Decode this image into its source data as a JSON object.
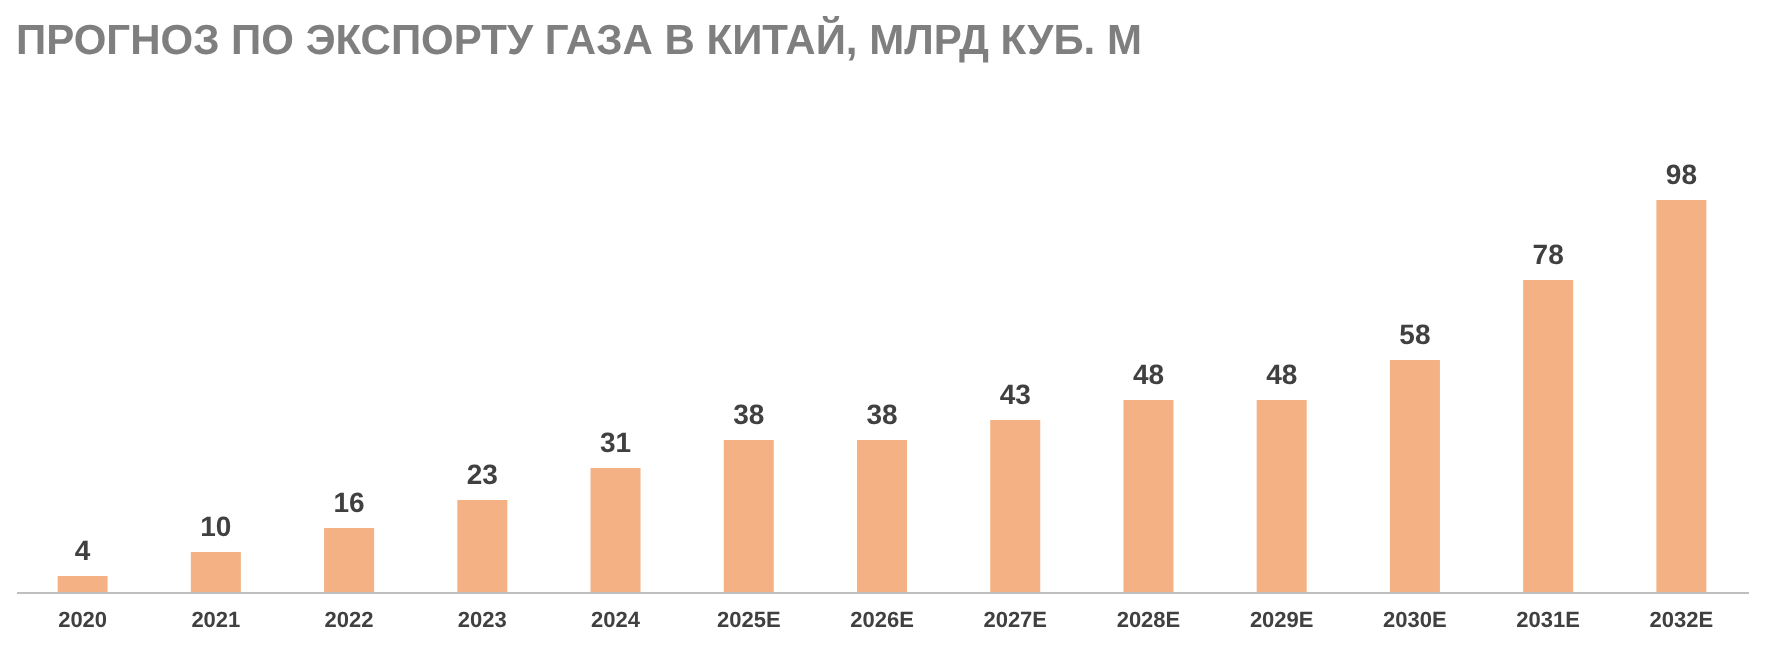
{
  "chart_data": {
    "type": "bar",
    "title": "ПРОГНОЗ ПО ЭКСПОРТУ ГАЗА В КИТАЙ, МЛРД КУБ. М",
    "categories": [
      "2020",
      "2021",
      "2022",
      "2023",
      "2024",
      "2025E",
      "2026E",
      "2027E",
      "2028E",
      "2029E",
      "2030E",
      "2031E",
      "2032E"
    ],
    "values": [
      4,
      10,
      16,
      23,
      31,
      38,
      38,
      43,
      48,
      48,
      58,
      78,
      98
    ],
    "color": "#f4b183",
    "data_labels": true,
    "grid": false,
    "tick_labels": "x"
  }
}
